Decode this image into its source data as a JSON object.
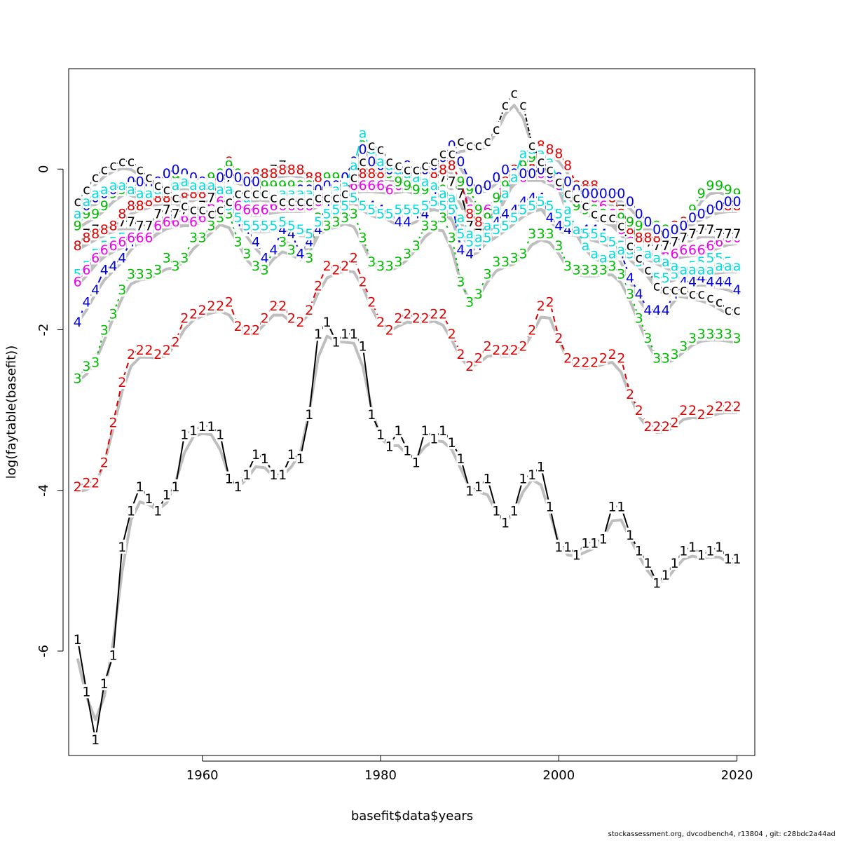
{
  "chart_data": {
    "type": "line",
    "title": "",
    "xlabel": "basefit$data$years",
    "ylabel": "log(faytable(basefit))",
    "xlim": [
      1945,
      2022
    ],
    "ylim": [
      -7.3,
      1.25
    ],
    "xticks": [
      1960,
      1980,
      2000,
      2020
    ],
    "yticks": [
      -6,
      -4,
      -2,
      0
    ],
    "grid": false,
    "legend": "none",
    "years": [
      1946,
      1947,
      1948,
      1949,
      1950,
      1951,
      1952,
      1953,
      1954,
      1955,
      1956,
      1957,
      1958,
      1959,
      1960,
      1961,
      1962,
      1963,
      1964,
      1965,
      1966,
      1967,
      1968,
      1969,
      1970,
      1971,
      1972,
      1973,
      1974,
      1975,
      1976,
      1977,
      1978,
      1979,
      1980,
      1981,
      1982,
      1983,
      1984,
      1985,
      1986,
      1987,
      1988,
      1989,
      1990,
      1991,
      1992,
      1993,
      1994,
      1995,
      1996,
      1997,
      1998,
      1999,
      2000,
      2001,
      2002,
      2003,
      2004,
      2005,
      2006,
      2007,
      2008,
      2009,
      2010,
      2011,
      2012,
      2013,
      2014,
      2015,
      2016,
      2017,
      2018,
      2019,
      2020
    ],
    "series": [
      {
        "label": "1",
        "color": "#000000",
        "values": [
          -5.85,
          -6.5,
          -7.1,
          -6.4,
          -6.05,
          -4.7,
          -4.25,
          -3.95,
          -4.1,
          -4.25,
          -4.05,
          -3.95,
          -3.3,
          -3.25,
          -3.2,
          -3.2,
          -3.3,
          -3.85,
          -3.95,
          -3.8,
          -3.55,
          -3.6,
          -3.8,
          -3.8,
          -3.55,
          -3.6,
          -3.05,
          -2.05,
          -1.9,
          -2.15,
          -2.05,
          -2.05,
          -2.2,
          -3.05,
          -3.3,
          -3.45,
          -3.25,
          -3.5,
          -3.65,
          -3.25,
          -3.35,
          -3.25,
          -3.4,
          -3.6,
          -4.0,
          -3.95,
          -3.85,
          -4.25,
          -4.4,
          -4.25,
          -3.85,
          -3.8,
          -3.7,
          -4.2,
          -4.7,
          -4.7,
          -4.8,
          -4.65,
          -4.65,
          -4.6,
          -4.2,
          -4.2,
          -4.55,
          -4.75,
          -4.9,
          -5.15,
          -5.05,
          -4.9,
          -4.75,
          -4.7,
          -4.8,
          -4.75,
          -4.7,
          -4.85,
          -4.85
        ]
      },
      {
        "label": "2",
        "color": "#df0000",
        "values": [
          -3.95,
          -3.9,
          -3.9,
          -3.65,
          -3.15,
          -2.65,
          -2.3,
          -2.25,
          -2.25,
          -2.3,
          -2.25,
          -2.15,
          -1.85,
          -1.8,
          -1.75,
          -1.7,
          -1.7,
          -1.65,
          -1.95,
          -2.0,
          -2.0,
          -1.85,
          -1.7,
          -1.7,
          -1.85,
          -1.9,
          -1.75,
          -1.45,
          -1.2,
          -1.25,
          -1.2,
          -1.1,
          -1.4,
          -1.65,
          -1.9,
          -2.0,
          -1.85,
          -1.8,
          -1.85,
          -1.85,
          -1.8,
          -1.8,
          -2.05,
          -2.3,
          -2.45,
          -2.35,
          -2.2,
          -2.25,
          -2.25,
          -2.25,
          -2.2,
          -2.0,
          -1.7,
          -1.65,
          -2.1,
          -2.35,
          -2.4,
          -2.4,
          -2.4,
          -2.35,
          -2.3,
          -2.35,
          -2.8,
          -3.0,
          -3.2,
          -3.2,
          -3.2,
          -3.15,
          -3.0,
          -3.0,
          -3.05,
          -3.0,
          -2.95,
          -2.95,
          -2.95
        ]
      },
      {
        "label": "3",
        "color": "#00bb00",
        "values": [
          -2.6,
          -2.45,
          -2.4,
          -2.0,
          -1.8,
          -1.5,
          -1.3,
          -1.3,
          -1.3,
          -1.25,
          -1.1,
          -1.2,
          -1.1,
          -0.85,
          -0.85,
          -0.7,
          -0.6,
          -0.55,
          -0.9,
          -1.05,
          -1.2,
          -1.25,
          -1.0,
          -0.9,
          -1.0,
          -1.05,
          -1.1,
          -0.6,
          -0.7,
          -0.65,
          -0.6,
          -0.55,
          -0.85,
          -1.15,
          -1.2,
          -1.2,
          -1.15,
          -1.05,
          -0.95,
          -0.7,
          -0.7,
          -0.6,
          -0.85,
          -1.4,
          -1.65,
          -1.55,
          -1.3,
          -1.15,
          -1.15,
          -1.1,
          -1.05,
          -0.8,
          -0.8,
          -0.8,
          -0.95,
          -1.2,
          -1.25,
          -1.25,
          -1.25,
          -1.25,
          -1.2,
          -1.3,
          -1.55,
          -1.85,
          -2.1,
          -2.35,
          -2.35,
          -2.3,
          -2.2,
          -2.1,
          -2.05,
          -2.05,
          -2.05,
          -2.05,
          -2.1
        ]
      },
      {
        "label": "4",
        "color": "#0000dd",
        "values": [
          -1.9,
          -1.65,
          -1.5,
          -1.25,
          -1.2,
          -1.1,
          -0.9,
          -0.8,
          -0.75,
          -0.65,
          -0.55,
          -0.6,
          -0.55,
          -0.6,
          -0.55,
          -0.5,
          -0.4,
          -0.4,
          -0.65,
          -0.75,
          -0.9,
          -1.1,
          -1.0,
          -0.75,
          -0.8,
          -1.05,
          -0.9,
          -0.75,
          -0.4,
          -0.45,
          -0.35,
          -0.3,
          -0.45,
          -0.45,
          -0.5,
          -0.55,
          -0.65,
          -0.65,
          -0.55,
          -0.55,
          -0.25,
          -0.4,
          -0.4,
          -1.0,
          -1.05,
          -0.95,
          -0.85,
          -0.65,
          -0.55,
          -0.5,
          -0.4,
          -0.35,
          -0.35,
          -0.6,
          -0.7,
          -0.75,
          -0.75,
          -0.75,
          -0.75,
          -0.8,
          -0.9,
          -1.05,
          -1.35,
          -1.55,
          -1.75,
          -1.75,
          -1.75,
          -1.55,
          -1.4,
          -1.4,
          -1.35,
          -1.4,
          -1.4,
          -1.4,
          -1.5
        ]
      },
      {
        "label": "5",
        "color": "#00dddd",
        "values": [
          -1.3,
          -1.2,
          -1.05,
          -0.95,
          -0.9,
          -0.85,
          -0.85,
          -0.85,
          -0.85,
          -0.7,
          -0.6,
          -0.65,
          -0.6,
          -0.6,
          -0.6,
          -0.55,
          -0.5,
          -0.45,
          -0.6,
          -0.7,
          -0.7,
          -0.7,
          -0.7,
          -0.65,
          -0.7,
          -0.75,
          -0.8,
          -0.65,
          -0.55,
          -0.5,
          -0.45,
          -0.35,
          -0.45,
          -0.5,
          -0.55,
          -0.55,
          -0.5,
          -0.5,
          -0.5,
          -0.45,
          -0.4,
          -0.45,
          -0.5,
          -0.8,
          -0.9,
          -0.9,
          -0.85,
          -0.75,
          -0.7,
          -0.6,
          -0.5,
          -0.45,
          -0.4,
          -0.45,
          -0.55,
          -0.65,
          -0.75,
          -0.8,
          -0.8,
          -0.85,
          -0.9,
          -0.95,
          -1.05,
          -1.15,
          -1.25,
          -1.35,
          -1.35,
          -1.3,
          -1.25,
          -1.2,
          -1.15,
          -1.1,
          -1.1,
          -1.15,
          -1.2
        ]
      },
      {
        "label": "6",
        "color": "#ee00ee",
        "values": [
          -1.4,
          -1.25,
          -1.1,
          -1.0,
          -0.95,
          -0.9,
          -0.85,
          -0.85,
          -0.85,
          -0.7,
          -0.65,
          -0.65,
          -0.6,
          -0.65,
          -0.6,
          -0.45,
          -0.4,
          -0.35,
          -0.45,
          -0.5,
          -0.5,
          -0.5,
          -0.45,
          -0.45,
          -0.45,
          -0.45,
          -0.45,
          -0.4,
          -0.3,
          -0.25,
          -0.25,
          -0.2,
          -0.2,
          -0.2,
          -0.2,
          -0.25,
          -0.2,
          -0.2,
          -0.15,
          -0.1,
          0.0,
          0.15,
          0.05,
          -0.15,
          -0.5,
          -0.55,
          -0.5,
          -0.35,
          -0.1,
          0.0,
          -0.1,
          -0.05,
          -0.05,
          -0.1,
          -0.2,
          -0.2,
          -0.3,
          -0.3,
          -0.35,
          -0.45,
          -0.55,
          -0.75,
          -0.9,
          -1.0,
          -1.05,
          -1.05,
          -1.05,
          -1.05,
          -1.0,
          -1.0,
          -1.0,
          -0.95,
          -0.9,
          -0.85,
          -0.85
        ]
      },
      {
        "label": "7",
        "color": "#000000",
        "values": [
          -0.95,
          -0.8,
          -0.75,
          -0.75,
          -0.7,
          -0.65,
          -0.65,
          -0.7,
          -0.7,
          -0.55,
          -0.5,
          -0.55,
          -0.5,
          -0.5,
          -0.45,
          -0.35,
          -0.15,
          -0.1,
          -0.05,
          -0.1,
          -0.1,
          -0.05,
          0.0,
          0.05,
          0.0,
          0.0,
          -0.1,
          -0.2,
          -0.3,
          -0.3,
          -0.1,
          -0.05,
          0.05,
          -0.05,
          -0.05,
          -0.05,
          -0.05,
          -0.05,
          -0.05,
          -0.05,
          -0.05,
          -0.1,
          -0.15,
          -0.3,
          -0.7,
          -0.8,
          -0.7,
          -0.45,
          -0.2,
          -0.1,
          -0.05,
          0.0,
          0.05,
          -0.05,
          -0.15,
          -0.25,
          -0.3,
          -0.3,
          -0.3,
          -0.3,
          -0.35,
          -0.5,
          -0.7,
          -0.85,
          -0.95,
          -0.95,
          -0.95,
          -0.9,
          -0.85,
          -0.8,
          -0.75,
          -0.75,
          -0.8,
          -0.8,
          -0.8
        ]
      },
      {
        "label": "8",
        "color": "#df0000",
        "values": [
          -0.95,
          -0.85,
          -0.8,
          -0.75,
          -0.7,
          -0.55,
          -0.45,
          -0.45,
          -0.4,
          -0.35,
          -0.35,
          -0.35,
          -0.35,
          -0.3,
          -0.3,
          -0.2,
          -0.05,
          0.1,
          -0.05,
          -0.1,
          -0.05,
          -0.05,
          -0.05,
          0.0,
          0.0,
          0.0,
          -0.1,
          -0.1,
          -0.25,
          -0.2,
          -0.1,
          -0.1,
          -0.05,
          -0.05,
          -0.05,
          0.0,
          0.0,
          -0.05,
          -0.05,
          0.0,
          -0.05,
          0.0,
          0.05,
          -0.15,
          -0.55,
          -0.65,
          -0.7,
          -0.45,
          -0.15,
          0.0,
          0.05,
          0.05,
          0.3,
          0.25,
          0.2,
          0.05,
          -0.2,
          -0.2,
          -0.2,
          -0.3,
          -0.35,
          -0.55,
          -0.75,
          -0.85,
          -0.85,
          -0.85,
          -0.75,
          -0.7,
          -0.65,
          -0.6,
          -0.55,
          -0.5,
          -0.45,
          -0.45,
          -0.45
        ]
      },
      {
        "label": "9",
        "color": "#00bb00",
        "values": [
          -0.7,
          -0.55,
          -0.55,
          -0.45,
          -0.3,
          -0.25,
          -0.2,
          -0.2,
          -0.25,
          -0.15,
          -0.1,
          -0.1,
          -0.1,
          -0.15,
          -0.15,
          -0.1,
          -0.05,
          0.05,
          -0.05,
          -0.15,
          -0.15,
          -0.2,
          -0.2,
          -0.2,
          -0.2,
          -0.2,
          -0.2,
          -0.25,
          -0.1,
          -0.1,
          -0.2,
          0.05,
          0.3,
          0.15,
          0.05,
          -0.05,
          -0.15,
          -0.2,
          -0.25,
          -0.25,
          -0.2,
          -0.25,
          -0.35,
          -0.15,
          -0.25,
          -0.5,
          -0.6,
          -0.35,
          -0.2,
          -0.05,
          0.05,
          0.15,
          0.15,
          0.05,
          -0.1,
          -0.25,
          -0.45,
          -0.5,
          -0.5,
          -0.55,
          -0.6,
          -0.6,
          -0.65,
          -0.7,
          -0.65,
          -0.7,
          -0.75,
          -0.75,
          -0.7,
          -0.5,
          -0.3,
          -0.2,
          -0.2,
          -0.25,
          -0.3
        ]
      },
      {
        "label": "0",
        "color": "#0000dd",
        "values": [
          -0.5,
          -0.45,
          -0.35,
          -0.3,
          -0.25,
          -0.2,
          -0.15,
          -0.15,
          -0.2,
          -0.15,
          -0.05,
          0.0,
          -0.05,
          -0.1,
          -0.15,
          -0.2,
          -0.1,
          -0.05,
          -0.1,
          -0.15,
          -0.15,
          -0.3,
          -0.3,
          -0.35,
          -0.3,
          -0.25,
          -0.25,
          -0.25,
          -0.2,
          -0.2,
          -0.1,
          0.1,
          0.25,
          0.1,
          0.05,
          0.0,
          0.0,
          0.05,
          0.0,
          0.0,
          0.05,
          0.15,
          0.3,
          0.1,
          -0.15,
          -0.25,
          -0.2,
          -0.1,
          0.0,
          -0.05,
          -0.05,
          -0.05,
          0.0,
          -0.05,
          -0.1,
          -0.15,
          -0.25,
          -0.3,
          -0.3,
          -0.3,
          -0.3,
          -0.3,
          -0.4,
          -0.55,
          -0.65,
          -0.75,
          -0.8,
          -0.75,
          -0.7,
          -0.6,
          -0.55,
          -0.5,
          -0.45,
          -0.4,
          -0.4
        ]
      },
      {
        "label": "a",
        "color": "#00dddd",
        "values": [
          -0.55,
          -0.4,
          -0.3,
          -0.25,
          -0.2,
          -0.2,
          -0.25,
          -0.3,
          -0.3,
          -0.25,
          -0.2,
          -0.2,
          -0.15,
          -0.2,
          -0.2,
          -0.2,
          -0.25,
          -0.25,
          -0.3,
          -0.35,
          -0.3,
          -0.3,
          -0.3,
          -0.3,
          -0.3,
          -0.3,
          -0.3,
          -0.35,
          -0.3,
          -0.25,
          -0.2,
          0.05,
          0.45,
          0.25,
          0.1,
          0.05,
          0.0,
          -0.05,
          -0.1,
          -0.15,
          -0.2,
          -0.3,
          -0.35,
          -0.6,
          -0.8,
          -0.85,
          -0.7,
          -0.5,
          -0.3,
          -0.1,
          0.2,
          0.25,
          0.2,
          0.1,
          -0.15,
          -0.5,
          -0.75,
          -0.95,
          -1.05,
          -1.1,
          -1.05,
          -1.0,
          -1.0,
          -1.0,
          -1.05,
          -1.1,
          -1.15,
          -1.2,
          -1.25,
          -1.25,
          -1.25,
          -1.25,
          -1.2,
          -1.2,
          -1.2
        ]
      },
      {
        "label": "c",
        "color": "#000000",
        "values": [
          -0.4,
          -0.25,
          -0.1,
          0.0,
          0.05,
          0.1,
          0.1,
          0.0,
          -0.1,
          -0.2,
          -0.25,
          -0.35,
          -0.45,
          -0.5,
          -0.5,
          -0.55,
          -0.5,
          -0.4,
          -0.3,
          -0.3,
          -0.3,
          -0.3,
          -0.35,
          -0.4,
          -0.4,
          -0.4,
          -0.4,
          -0.35,
          -0.35,
          -0.35,
          -0.3,
          -0.1,
          0.1,
          0.3,
          0.25,
          0.1,
          0.05,
          0.0,
          0.0,
          0.05,
          0.1,
          0.2,
          0.2,
          0.35,
          0.3,
          0.3,
          0.35,
          0.5,
          0.8,
          0.95,
          0.8,
          0.3,
          0.1,
          0.0,
          -0.15,
          -0.3,
          -0.35,
          -0.45,
          -0.55,
          -0.6,
          -0.6,
          -0.7,
          -0.95,
          -1.1,
          -1.25,
          -1.45,
          -1.5,
          -1.5,
          -1.5,
          -1.55,
          -1.55,
          -1.6,
          -1.65,
          -1.75,
          -1.75
        ]
      }
    ],
    "reference_lines": {
      "color": "#bebebe",
      "label": "",
      "note": "grey reference curves follow each series"
    }
  },
  "footer": {
    "text": "stockassessment.org, dvcodbench4, r13804 , git: c28bdc2a44ad"
  }
}
